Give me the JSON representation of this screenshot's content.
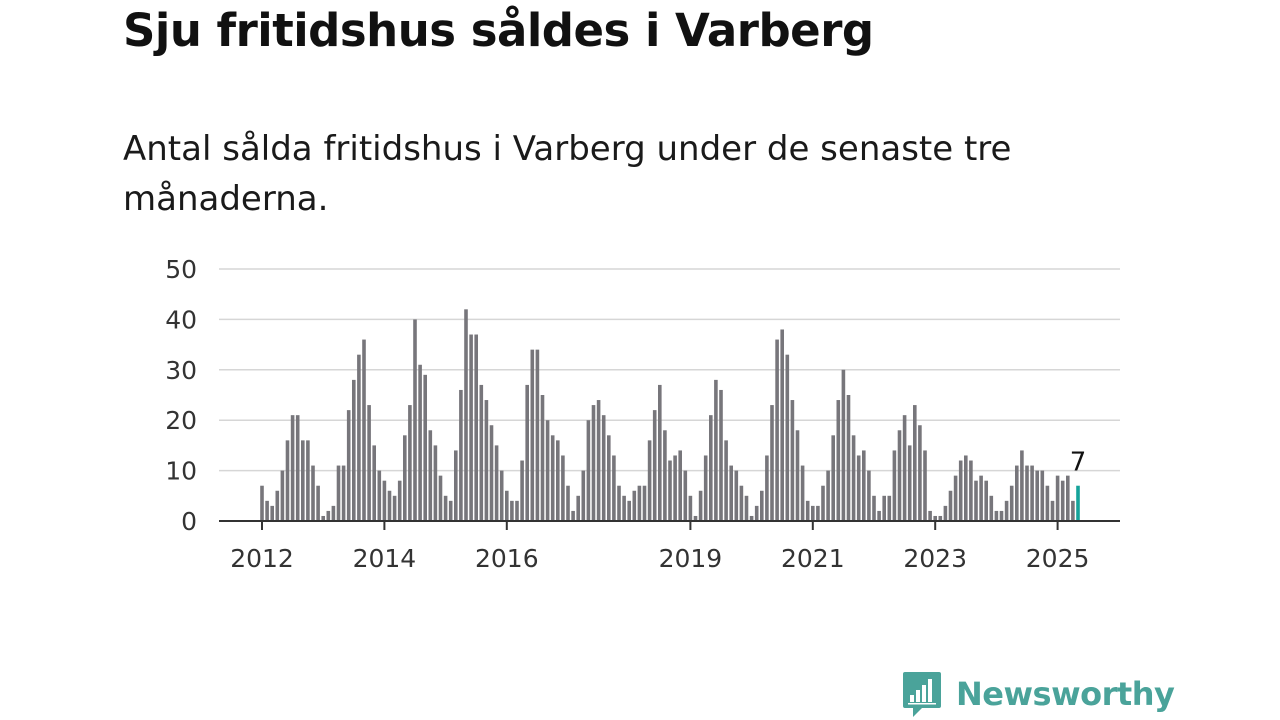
{
  "header": {
    "title": "Sju fritidshus såldes i Varberg",
    "subtitle": "Antal sålda fritidshus i Varberg under de senaste tre månaderna."
  },
  "brand": {
    "name": "Newsworthy",
    "color": "#4aa39a",
    "icon": "newsworthy-logo-icon"
  },
  "colors": {
    "bar": "#77767b",
    "highlight": "#15a39a",
    "grid": "#d6d6d6",
    "axis": "#333333"
  },
  "chart_data": {
    "type": "bar",
    "title": "Sju fritidshus såldes i Varberg",
    "subtitle": "Antal sålda fritidshus i Varberg under de senaste tre månaderna.",
    "xlabel": "",
    "ylabel": "",
    "ylim": [
      0,
      50
    ],
    "yticks": [
      "0",
      "10",
      "20",
      "30",
      "40",
      "50"
    ],
    "xtick_labels": [
      {
        "label": "2012",
        "index": 0
      },
      {
        "label": "2014",
        "index": 24
      },
      {
        "label": "2016",
        "index": 48
      },
      {
        "label": "2019",
        "index": 84
      },
      {
        "label": "2021",
        "index": 108
      },
      {
        "label": "2023",
        "index": 132
      },
      {
        "label": "2025",
        "index": 156
      }
    ],
    "grid": true,
    "legend": "none",
    "highlight": {
      "index": 160,
      "value": 7,
      "label": "7"
    },
    "values": [
      7,
      4,
      3,
      6,
      10,
      16,
      21,
      21,
      16,
      16,
      11,
      7,
      1,
      2,
      3,
      11,
      11,
      22,
      28,
      33,
      36,
      23,
      15,
      10,
      8,
      6,
      5,
      8,
      17,
      23,
      40,
      31,
      29,
      18,
      15,
      9,
      5,
      4,
      14,
      26,
      42,
      37,
      37,
      27,
      24,
      19,
      15,
      10,
      6,
      4,
      4,
      12,
      27,
      34,
      34,
      25,
      20,
      17,
      16,
      13,
      7,
      2,
      5,
      10,
      20,
      23,
      24,
      21,
      17,
      13,
      7,
      5,
      4,
      6,
      7,
      7,
      16,
      22,
      27,
      18,
      12,
      13,
      14,
      10,
      5,
      1,
      6,
      13,
      21,
      28,
      26,
      16,
      11,
      10,
      7,
      5,
      1,
      3,
      6,
      13,
      23,
      36,
      38,
      33,
      24,
      18,
      11,
      4,
      3,
      3,
      7,
      10,
      17,
      24,
      30,
      25,
      17,
      13,
      14,
      10,
      5,
      2,
      5,
      5,
      14,
      18,
      21,
      15,
      23,
      19,
      14,
      2,
      1,
      1,
      3,
      6,
      9,
      12,
      13,
      12,
      8,
      9,
      8,
      5,
      2,
      2,
      4,
      7,
      11,
      14,
      11,
      11,
      10,
      10,
      7,
      4,
      9,
      8,
      9,
      4,
      7
    ]
  }
}
